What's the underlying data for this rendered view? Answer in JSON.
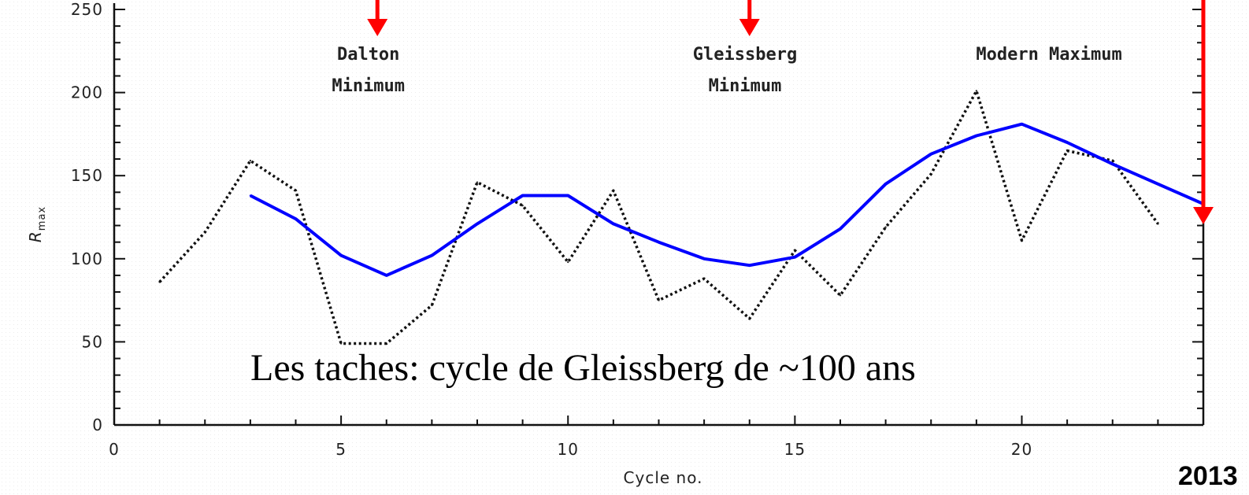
{
  "chart_data": {
    "type": "line",
    "xlabel": "Cycle no.",
    "ylabel": "R",
    "ylabel_sub": "max",
    "xlim": [
      0,
      24
    ],
    "ylim": [
      0,
      250
    ],
    "x_ticks": [
      0,
      5,
      10,
      15,
      20
    ],
    "y_ticks": [
      0,
      50,
      100,
      150,
      200,
      250
    ],
    "series": [
      {
        "style": "dotted",
        "color": "#111111",
        "x": [
          1,
          2,
          3,
          4,
          5,
          6,
          7,
          8,
          9,
          10,
          11,
          12,
          13,
          14,
          15,
          16,
          17,
          18,
          19,
          20,
          21,
          22,
          23
        ],
        "values": [
          86,
          116,
          159,
          141,
          49,
          49,
          72,
          146,
          132,
          98,
          141,
          75,
          88,
          64,
          105,
          78,
          119,
          151,
          201,
          111,
          165,
          159,
          121
        ]
      },
      {
        "style": "solid",
        "color": "#0000ff",
        "x": [
          3,
          4,
          5,
          6,
          7,
          8,
          9,
          10,
          11,
          12,
          13,
          14,
          15,
          16,
          17,
          18,
          19,
          20,
          21,
          22,
          23,
          24
        ],
        "values": [
          138,
          124,
          102,
          90,
          102,
          121,
          138,
          138,
          121,
          110,
          100,
          96,
          101,
          118,
          145,
          163,
          174,
          181,
          170,
          157,
          145,
          133
        ]
      }
    ],
    "annotations": [
      {
        "lines": [
          "Dalton",
          "Minimum"
        ],
        "x": 5.6
      },
      {
        "lines": [
          "Gleissberg",
          "Minimum"
        ],
        "x": 13.9
      },
      {
        "lines": [
          "Modern Maximum"
        ],
        "x": 20.6
      }
    ],
    "arrows": [
      {
        "x": 5.8,
        "color": "#ff0000"
      },
      {
        "x": 14.0,
        "color": "#ff0000"
      },
      {
        "x": 24.0,
        "color": "#ff0000"
      }
    ],
    "overlay_text": "Les taches: cycle de Gleissberg de ~100 ans",
    "year_label": "2013"
  }
}
